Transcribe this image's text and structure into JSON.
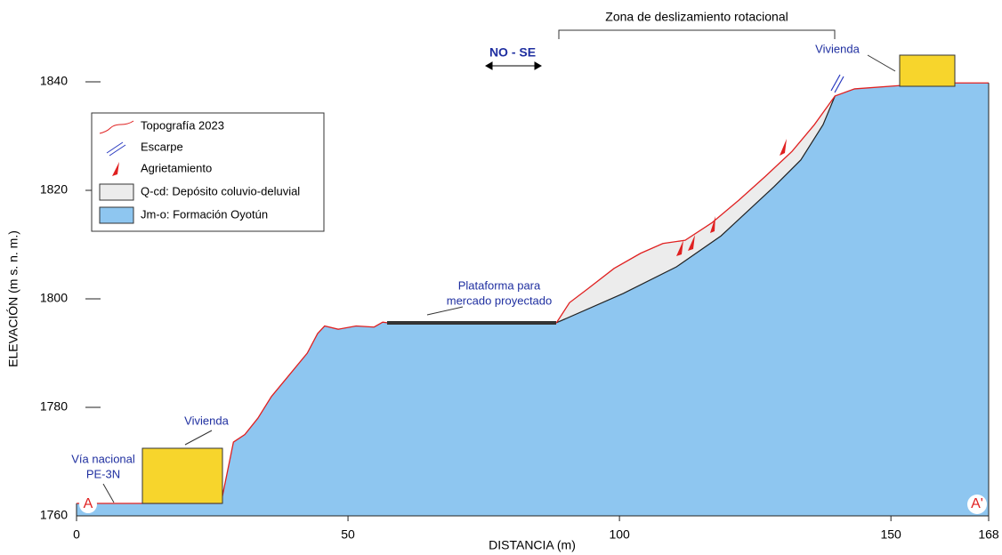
{
  "chart_data": {
    "type": "profile",
    "xlabel": "DISTANCIA (m)",
    "ylabel": "ELEVACIÓN (m s. n. m.)",
    "xlim": [
      0,
      168
    ],
    "ylim": [
      1760,
      1840
    ],
    "xticks": [
      0,
      50,
      100,
      150,
      168
    ],
    "yticks": [
      1760,
      1780,
      1800,
      1820,
      1840
    ],
    "series": [
      {
        "name": "Topografía 2023",
        "color": "#e02020",
        "x": [
          0,
          26.6,
          28.9,
          31,
          33.4,
          35.9,
          39.2,
          42.5,
          44.4,
          45.7,
          48.2,
          51.5,
          54.8,
          56.4,
          57.2,
          88.4,
          90.8,
          94.1,
          99,
          103.9,
          108,
          112.1,
          117,
          122,
          126.9,
          131.8,
          135.9,
          139.7,
          143.3,
          151.5,
          158,
          168
        ],
        "values": [
          1762.3,
          1762.3,
          1773.6,
          1775,
          1778,
          1782,
          1786,
          1790,
          1793.6,
          1795,
          1794.4,
          1795,
          1794.8,
          1795.7,
          1795.6,
          1795.6,
          1799.3,
          1801.8,
          1805.6,
          1808.4,
          1810.2,
          1810.8,
          1814,
          1818.2,
          1822.6,
          1827.2,
          1832.1,
          1837.4,
          1838.7,
          1839.3,
          1839.8,
          1839.8
        ]
      },
      {
        "name": "Q-cd: Depósito coluvio-deluvial",
        "color": "#ececec",
        "x": [
          88.4,
          100.7,
          110.5,
          118.7,
          128.5,
          133.4,
          137.5,
          139.7
        ],
        "values": [
          1795.6,
          1801,
          1805.9,
          1811.6,
          1820.7,
          1825.6,
          1832.1,
          1837.4
        ]
      },
      {
        "name": "Jm-o: Formación Oyotún",
        "color": "#8ec6f0"
      }
    ],
    "legend": [
      "Escarpe",
      "Agrietamiento"
    ],
    "annotations": [
      "Zona de deslizamiento rotacional",
      "NO - SE",
      "Vivienda",
      "Vivienda",
      "Vía nacional",
      "PE-3N",
      "Plataforma para",
      "mercado proyectado",
      "A",
      "A'"
    ]
  }
}
